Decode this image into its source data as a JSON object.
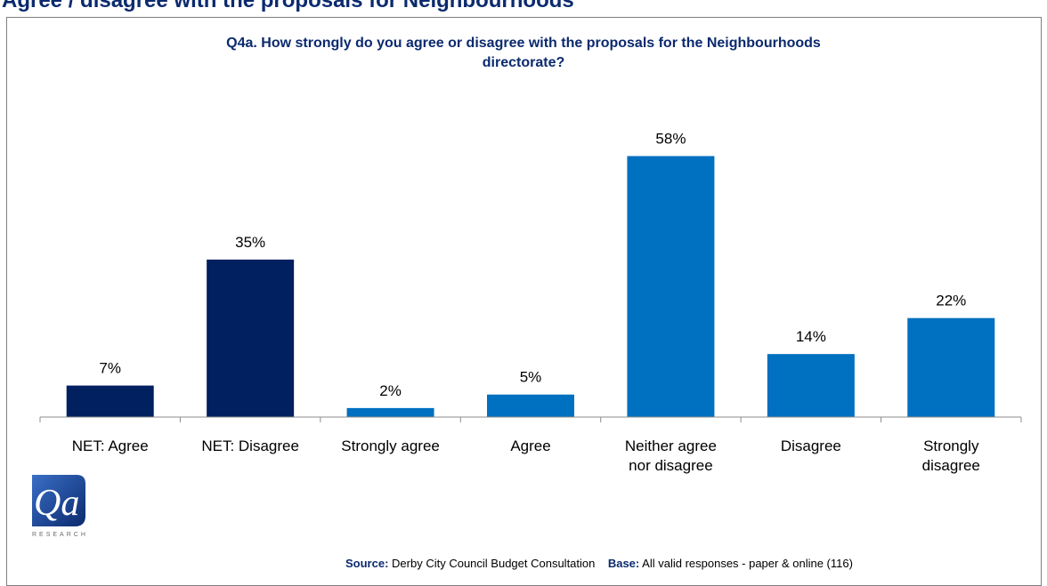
{
  "banner": {
    "text": "Agree / disagree with the proposals for Neighbourhoods"
  },
  "chart_data": {
    "type": "bar",
    "title_lines": [
      "Q4a. How strongly do you agree or disagree with the proposals for the Neighbourhoods",
      "directorate?"
    ],
    "categories": [
      [
        "NET: Agree"
      ],
      [
        "NET: Disagree"
      ],
      [
        "Strongly agree"
      ],
      [
        "Agree"
      ],
      [
        "Neither agree",
        "nor disagree"
      ],
      [
        "Disagree"
      ],
      [
        "Strongly",
        "disagree"
      ]
    ],
    "values": [
      7,
      35,
      2,
      5,
      58,
      14,
      22
    ],
    "data_labels": [
      "7%",
      "35%",
      "2%",
      "5%",
      "58%",
      "14%",
      "22%"
    ],
    "bar_colors": [
      "#002060",
      "#002060",
      "#0070c0",
      "#0070c0",
      "#0070c0",
      "#0070c0",
      "#0070c0"
    ],
    "unit": "%",
    "ylim": [
      0,
      70
    ],
    "grid": false,
    "legend": "none"
  },
  "logo": {
    "text": "Qa",
    "subtext": "RESEARCH"
  },
  "footer": {
    "source_label": "Source:",
    "source_text": "Derby City Council Budget Consultation",
    "base_label": "Base:",
    "base_text": "All valid responses - paper & online (116)"
  }
}
